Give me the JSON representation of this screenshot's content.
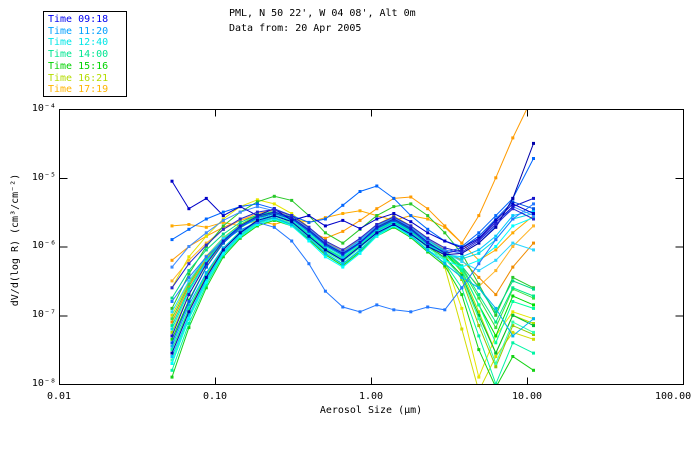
{
  "header": {
    "title": "PML, N 50 22', W 04 08', Alt 0m",
    "subtitle": "Data from: 20 Apr 2005"
  },
  "legend": {
    "items": [
      {
        "label": "Time 09:18",
        "color": "#0000f0"
      },
      {
        "label": "Time 11:20",
        "color": "#00a0ff"
      },
      {
        "label": "Time 12:40",
        "color": "#00e6e6"
      },
      {
        "label": "Time 14:00",
        "color": "#00e691"
      },
      {
        "label": "Time 15:16",
        "color": "#00d200"
      },
      {
        "label": "Time 16:21",
        "color": "#b4dc00"
      },
      {
        "label": "Time 17:19",
        "color": "#ffb400"
      }
    ]
  },
  "chart_data": {
    "type": "line",
    "title": "PML, N 50 22', W 04 08', Alt 0m",
    "subtitle": "Data from: 20 Apr 2005",
    "xlabel": "Aerosol Size (μm)",
    "ylabel": "dV/d(log R) (cm³/cm⁻²)",
    "x_scale": "log",
    "y_scale": "log",
    "xlim": [
      0.01,
      100.0
    ],
    "ylim": [
      1e-08,
      0.0001
    ],
    "grid": false,
    "legend_position": "top-left-outside",
    "x_ticks": [
      "0.01",
      "0.10",
      "1.00",
      "10.00",
      "100.00"
    ],
    "y_ticks": [
      {
        "label": "10⁻⁴",
        "log": -4
      },
      {
        "label": "10⁻⁵",
        "log": -5
      },
      {
        "label": "10⁻⁶",
        "log": -6
      },
      {
        "label": "10⁻⁷",
        "log": -7
      },
      {
        "label": "10⁻⁸",
        "log": -8
      }
    ],
    "x": [
      0.053,
      0.068,
      0.088,
      0.113,
      0.145,
      0.187,
      0.24,
      0.31,
      0.4,
      0.51,
      0.66,
      0.85,
      1.09,
      1.4,
      1.8,
      2.31,
      2.97,
      3.82,
      4.91,
      6.31,
      8.11,
      11.0
    ],
    "series": [
      {
        "time": "17:19",
        "color": "#ffaa00",
        "logy": [
          -5.7,
          -5.68,
          -5.72,
          -5.65,
          -5.7,
          -5.62,
          -5.68,
          -5.6,
          -5.65,
          -5.58,
          -5.52,
          -5.48,
          -5.55,
          -5.62,
          -5.55,
          -5.6,
          -5.72,
          -5.95,
          -6.2,
          -6.05,
          -5.8,
          -5.55
        ]
      },
      {
        "time": "17:19",
        "color": "#ff9b00",
        "logy": [
          -6.2,
          -6.0,
          -5.85,
          -5.72,
          -5.62,
          -5.55,
          -5.6,
          -5.68,
          -5.78,
          -5.88,
          -5.78,
          -5.62,
          -5.45,
          -5.3,
          -5.28,
          -5.45,
          -5.7,
          -5.95,
          -5.55,
          -5.0,
          -4.42,
          -3.8
        ]
      },
      {
        "time": "17:19",
        "color": "#f08c00",
        "logy": [
          -7.1,
          -6.58,
          -6.18,
          -5.9,
          -5.7,
          -5.58,
          -5.52,
          -5.6,
          -5.78,
          -5.98,
          -6.12,
          -5.94,
          -5.73,
          -5.61,
          -5.75,
          -5.93,
          -6.09,
          -6.2,
          -6.45,
          -6.7,
          -6.3,
          -5.95
        ]
      },
      {
        "time": "17:19",
        "color": "#ffb428",
        "logy": [
          -6.5,
          -6.2,
          -5.95,
          -5.75,
          -5.62,
          -5.52,
          -5.47,
          -5.55,
          -5.73,
          -5.93,
          -6.07,
          -5.89,
          -5.68,
          -5.56,
          -5.7,
          -5.88,
          -6.04,
          -6.3,
          -6.58,
          -6.35,
          -6.0,
          -5.7
        ]
      },
      {
        "time": "16:21",
        "color": "#aadc00",
        "logy": [
          -7.25,
          -6.7,
          -6.26,
          -5.93,
          -5.72,
          -5.58,
          -5.52,
          -5.6,
          -5.78,
          -5.97,
          -6.1,
          -5.92,
          -5.71,
          -5.59,
          -5.73,
          -5.91,
          -6.07,
          -6.38,
          -6.95,
          -7.55,
          -7.0,
          -7.12
        ]
      },
      {
        "time": "16:21",
        "color": "#e6e600",
        "logy": [
          -6.6,
          -6.15,
          -5.85,
          -5.6,
          -5.42,
          -5.32,
          -5.38,
          -5.52,
          -5.72,
          -5.95,
          -6.08,
          -5.9,
          -5.68,
          -5.56,
          -5.7,
          -5.9,
          -6.2,
          -6.9,
          -7.9,
          -7.3,
          -6.95,
          -7.05
        ]
      },
      {
        "time": "16:21",
        "color": "#d2dc00",
        "logy": [
          -7.0,
          -6.52,
          -6.14,
          -5.87,
          -5.68,
          -5.55,
          -5.5,
          -5.58,
          -5.77,
          -5.97,
          -6.11,
          -5.93,
          -5.72,
          -5.6,
          -5.74,
          -5.93,
          -6.3,
          -7.2,
          -8.1,
          -7.6,
          -7.25,
          -7.35
        ]
      },
      {
        "time": "16:21",
        "color": "#96c800",
        "logy": [
          -7.5,
          -6.92,
          -6.42,
          -6.04,
          -5.8,
          -5.64,
          -5.56,
          -5.64,
          -5.83,
          -6.03,
          -6.17,
          -5.99,
          -5.77,
          -5.65,
          -5.79,
          -5.97,
          -6.13,
          -6.48,
          -7.15,
          -7.75,
          -7.15,
          -7.28
        ]
      },
      {
        "time": "15:16",
        "color": "#00dc00",
        "logy": [
          -7.35,
          -6.78,
          -6.3,
          -5.95,
          -5.73,
          -5.58,
          -5.52,
          -5.6,
          -5.78,
          -5.98,
          -6.12,
          -5.94,
          -5.73,
          -5.61,
          -5.75,
          -5.93,
          -6.09,
          -6.35,
          -6.85,
          -7.3,
          -6.72,
          -6.85
        ]
      },
      {
        "time": "15:16",
        "color": "#28c828",
        "logy": [
          -6.9,
          -6.4,
          -6.0,
          -5.7,
          -5.5,
          -5.35,
          -5.27,
          -5.33,
          -5.55,
          -5.8,
          -5.95,
          -5.75,
          -5.55,
          -5.42,
          -5.38,
          -5.55,
          -5.8,
          -6.1,
          -6.55,
          -7.0,
          -6.45,
          -6.6
        ]
      },
      {
        "time": "15:16",
        "color": "#00be32",
        "logy": [
          -7.7,
          -7.05,
          -6.52,
          -6.1,
          -5.84,
          -5.66,
          -5.58,
          -5.66,
          -5.86,
          -6.06,
          -6.2,
          -6.0,
          -5.78,
          -5.65,
          -5.8,
          -6.0,
          -6.16,
          -6.42,
          -7.0,
          -7.55,
          -7.0,
          -7.15
        ]
      },
      {
        "time": "15:16",
        "color": "#3ce03c",
        "logy": [
          -7.05,
          -6.55,
          -6.15,
          -5.88,
          -5.68,
          -5.55,
          -5.49,
          -5.57,
          -5.76,
          -5.96,
          -6.1,
          -5.92,
          -5.71,
          -5.59,
          -5.73,
          -5.91,
          -6.07,
          -6.32,
          -6.75,
          -7.18,
          -6.62,
          -6.75
        ]
      },
      {
        "time": "15:16",
        "color": "#14d214",
        "logy": [
          -7.9,
          -7.18,
          -6.6,
          -6.15,
          -5.88,
          -5.7,
          -5.62,
          -5.7,
          -5.9,
          -6.12,
          -6.28,
          -6.08,
          -5.85,
          -5.72,
          -5.87,
          -6.08,
          -6.28,
          -6.7,
          -7.5,
          -8.05,
          -7.6,
          -7.8
        ]
      },
      {
        "time": "14:00",
        "color": "#00ff9b",
        "logy": [
          -7.5,
          -6.9,
          -6.4,
          -6.02,
          -5.78,
          -5.62,
          -5.55,
          -5.63,
          -5.82,
          -6.02,
          -6.16,
          -5.98,
          -5.76,
          -5.64,
          -5.78,
          -5.96,
          -6.12,
          -6.35,
          -6.85,
          -7.4,
          -6.8,
          -6.9
        ]
      },
      {
        "time": "14:00",
        "color": "#00e988",
        "logy": [
          -7.15,
          -6.62,
          -6.2,
          -5.9,
          -5.7,
          -5.57,
          -5.51,
          -5.59,
          -5.77,
          -5.97,
          -6.11,
          -5.93,
          -5.72,
          -5.6,
          -5.74,
          -5.92,
          -6.08,
          -6.3,
          -6.7,
          -7.1,
          -6.6,
          -6.72
        ]
      },
      {
        "time": "14:00",
        "color": "#2effae",
        "logy": [
          -7.65,
          -7.02,
          -6.5,
          -6.08,
          -5.83,
          -5.66,
          -5.58,
          -5.66,
          -5.86,
          -6.08,
          -6.22,
          -6.02,
          -5.8,
          -5.67,
          -5.82,
          -6.02,
          -6.18,
          -6.45,
          -7.05,
          -7.7,
          -7.1,
          -7.25
        ]
      },
      {
        "time": "14:00",
        "color": "#00d986",
        "logy": [
          -6.75,
          -6.35,
          -6.05,
          -5.82,
          -5.65,
          -5.54,
          -5.49,
          -5.57,
          -5.75,
          -5.95,
          -6.09,
          -5.91,
          -5.7,
          -5.58,
          -5.72,
          -5.9,
          -6.06,
          -6.28,
          -6.6,
          -6.95,
          -6.5,
          -6.62
        ]
      },
      {
        "time": "14:00",
        "color": "#00f4a4",
        "logy": [
          -7.8,
          -7.12,
          -6.56,
          -6.12,
          -5.86,
          -5.68,
          -5.6,
          -5.68,
          -5.88,
          -6.1,
          -6.26,
          -6.06,
          -5.83,
          -5.7,
          -5.85,
          -6.06,
          -6.24,
          -6.6,
          -7.3,
          -8.0,
          -7.4,
          -7.55
        ]
      },
      {
        "time": "12:40",
        "color": "#00c8ff",
        "logy": [
          -7.6,
          -7.0,
          -6.48,
          -6.08,
          -5.82,
          -5.64,
          -5.56,
          -5.64,
          -5.84,
          -6.04,
          -6.18,
          -6.0,
          -5.78,
          -5.66,
          -5.8,
          -5.98,
          -6.12,
          -6.15,
          -6.05,
          -5.85,
          -5.55,
          -5.48
        ]
      },
      {
        "time": "12:40",
        "color": "#00dce6",
        "logy": [
          -7.2,
          -6.65,
          -6.22,
          -5.92,
          -5.72,
          -5.6,
          -5.54,
          -5.62,
          -5.8,
          -6.0,
          -6.14,
          -5.96,
          -5.75,
          -5.63,
          -5.77,
          -5.95,
          -6.1,
          -6.18,
          -6.1,
          -5.9,
          -5.6,
          -5.52
        ]
      },
      {
        "time": "12:40",
        "color": "#00ffff",
        "logy": [
          -7.7,
          -7.05,
          -6.52,
          -6.1,
          -5.85,
          -5.68,
          -5.6,
          -5.7,
          -5.92,
          -6.15,
          -6.3,
          -6.1,
          -5.85,
          -5.7,
          -5.85,
          -6.05,
          -6.2,
          -6.3,
          -6.2,
          -6.0,
          -5.7,
          -5.58
        ]
      },
      {
        "time": "12:40",
        "color": "#2bd5ff",
        "logy": [
          -6.95,
          -6.5,
          -6.15,
          -5.88,
          -5.7,
          -5.58,
          -5.52,
          -5.6,
          -5.78,
          -5.98,
          -6.1,
          -5.92,
          -5.72,
          -5.6,
          -5.74,
          -5.92,
          -6.08,
          -6.22,
          -6.35,
          -6.2,
          -5.95,
          -6.05
        ]
      },
      {
        "time": "12:40",
        "color": "#00b4f0",
        "logy": [
          -7.45,
          -6.85,
          -6.38,
          -6.02,
          -5.8,
          -5.65,
          -5.58,
          -5.68,
          -5.88,
          -6.1,
          -6.25,
          -6.05,
          -5.82,
          -5.68,
          -5.84,
          -6.05,
          -6.25,
          -6.45,
          -6.6,
          -6.9,
          -7.3,
          -7.05
        ]
      },
      {
        "time": "11:20",
        "color": "#0066ff",
        "logy": [
          -5.9,
          -5.75,
          -5.6,
          -5.5,
          -5.42,
          -5.38,
          -5.45,
          -5.55,
          -5.65,
          -5.6,
          -5.4,
          -5.2,
          -5.12,
          -5.3,
          -5.55,
          -5.75,
          -5.92,
          -6.0,
          -5.8,
          -5.55,
          -5.3,
          -4.72
        ]
      },
      {
        "time": "11:20",
        "color": "#2277ff",
        "logy": [
          -6.8,
          -6.45,
          -6.15,
          -5.92,
          -5.76,
          -5.65,
          -5.72,
          -5.92,
          -6.25,
          -6.65,
          -6.88,
          -6.95,
          -6.85,
          -6.92,
          -6.95,
          -6.88,
          -6.92,
          -6.6,
          -6.25,
          -5.9,
          -5.6,
          -5.38
        ]
      },
      {
        "time": "11:20",
        "color": "#0055e8",
        "logy": [
          -7.4,
          -6.8,
          -6.3,
          -5.95,
          -5.72,
          -5.58,
          -5.52,
          -5.6,
          -5.78,
          -5.98,
          -6.12,
          -5.95,
          -5.74,
          -5.62,
          -5.76,
          -5.96,
          -6.08,
          -6.02,
          -5.85,
          -5.6,
          -5.35,
          -5.45
        ]
      },
      {
        "time": "11:20",
        "color": "#3d8bff",
        "logy": [
          -6.3,
          -6.0,
          -5.8,
          -5.62,
          -5.5,
          -5.42,
          -5.48,
          -5.58,
          -5.74,
          -5.94,
          -6.08,
          -5.9,
          -5.7,
          -5.58,
          -5.72,
          -5.9,
          -6.05,
          -6.1,
          -5.95,
          -5.7,
          -5.42,
          -5.55
        ]
      },
      {
        "time": "09:18",
        "color": "#0000c8",
        "logy": [
          -5.05,
          -5.45,
          -5.3,
          -5.55,
          -5.42,
          -5.55,
          -5.45,
          -5.62,
          -5.55,
          -5.7,
          -5.62,
          -5.74,
          -5.6,
          -5.52,
          -5.64,
          -5.8,
          -5.92,
          -6.02,
          -5.88,
          -5.62,
          -5.38,
          -5.52
        ]
      },
      {
        "time": "09:18",
        "color": "#1414cd",
        "logy": [
          -7.3,
          -6.7,
          -6.25,
          -5.92,
          -5.7,
          -5.56,
          -5.5,
          -5.58,
          -5.76,
          -5.96,
          -6.1,
          -5.94,
          -5.72,
          -5.6,
          -5.74,
          -5.94,
          -6.1,
          -6.05,
          -5.9,
          -5.65,
          -5.42,
          -5.3
        ]
      },
      {
        "time": "09:18",
        "color": "#0000aa",
        "logy": [
          -7.55,
          -6.95,
          -6.45,
          -6.05,
          -5.8,
          -5.62,
          -5.55,
          -5.64,
          -5.85,
          -6.05,
          -6.2,
          -6.0,
          -5.8,
          -5.68,
          -5.82,
          -6.0,
          -6.12,
          -6.1,
          -5.95,
          -5.72,
          -5.3,
          -4.5
        ]
      },
      {
        "time": "09:18",
        "color": "#2626d2",
        "logy": [
          -6.6,
          -6.25,
          -5.98,
          -5.75,
          -5.6,
          -5.5,
          -5.46,
          -5.55,
          -5.72,
          -5.92,
          -6.05,
          -5.88,
          -5.68,
          -5.57,
          -5.7,
          -5.88,
          -6.02,
          -6.08,
          -5.92,
          -5.68,
          -5.45,
          -5.6
        ]
      }
    ]
  }
}
